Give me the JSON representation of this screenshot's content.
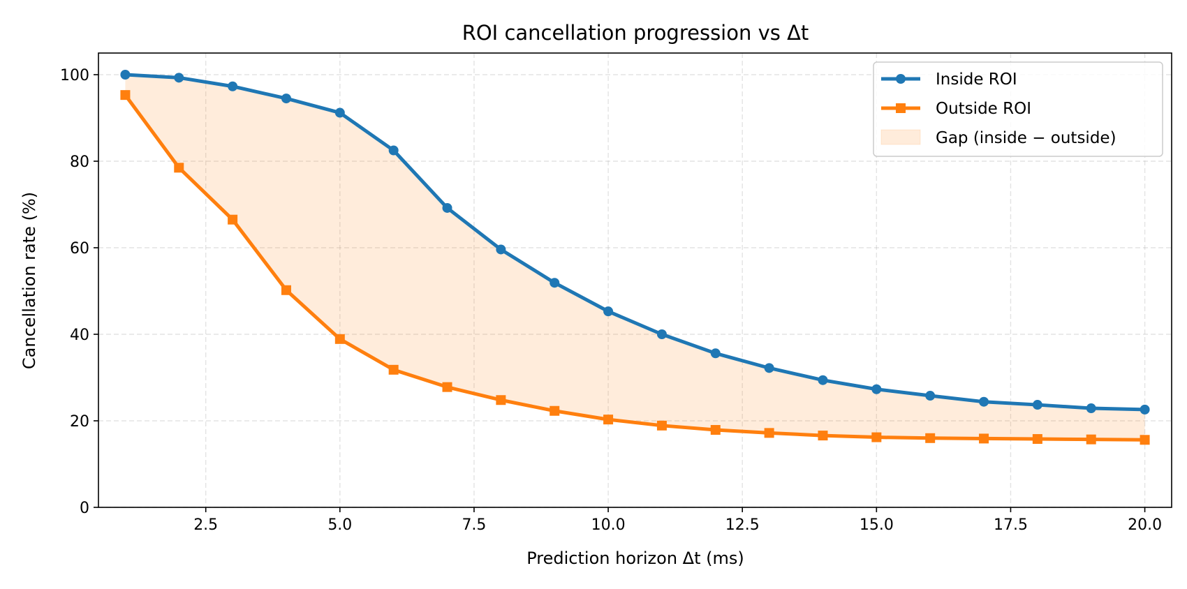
{
  "chart_data": {
    "type": "line",
    "title": "ROI cancellation progression vs Δt",
    "xlabel": "Prediction horizon Δt (ms)",
    "ylabel": "Cancellation rate (%)",
    "xlim": [
      0.5,
      20.5
    ],
    "ylim": [
      0,
      105
    ],
    "xticks": [
      2.5,
      5.0,
      7.5,
      10.0,
      12.5,
      15.0,
      17.5,
      20.0
    ],
    "xtick_labels": [
      "2.5",
      "5.0",
      "7.5",
      "10.0",
      "12.5",
      "15.0",
      "17.5",
      "20.0"
    ],
    "yticks": [
      0,
      20,
      40,
      60,
      80,
      100
    ],
    "ytick_labels": [
      "0",
      "20",
      "40",
      "60",
      "80",
      "100"
    ],
    "grid": true,
    "legend_position": "top-right",
    "x": [
      1,
      2,
      3,
      4,
      5,
      6,
      7,
      8,
      9,
      10,
      11,
      12,
      13,
      14,
      15,
      16,
      17,
      18,
      19,
      20
    ],
    "series": [
      {
        "name": "Inside ROI",
        "color": "#1f77b4",
        "marker": "circle",
        "values": [
          100.0,
          99.3,
          97.3,
          94.5,
          91.2,
          82.5,
          69.2,
          59.6,
          51.9,
          45.3,
          40.0,
          35.6,
          32.2,
          29.4,
          27.3,
          25.8,
          24.4,
          23.7,
          22.9,
          22.6
        ]
      },
      {
        "name": "Outside ROI",
        "color": "#ff7f0e",
        "marker": "square",
        "values": [
          95.3,
          78.5,
          66.5,
          50.2,
          38.9,
          31.8,
          27.8,
          24.8,
          22.3,
          20.3,
          18.9,
          17.9,
          17.2,
          16.6,
          16.2,
          16.0,
          15.9,
          15.8,
          15.7,
          15.6
        ]
      }
    ],
    "fill_between": {
      "name": "Gap (inside − outside)",
      "color": "#ff7f0e",
      "opacity": 0.15
    }
  }
}
